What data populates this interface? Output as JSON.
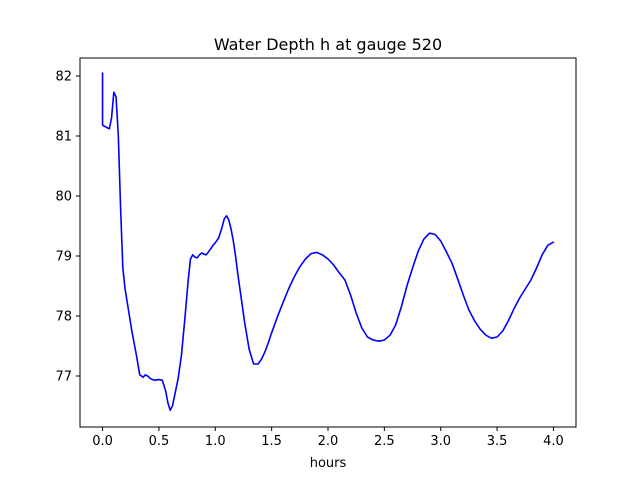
{
  "chart_data": {
    "type": "line",
    "title": "Water Depth h at gauge 520",
    "xlabel": "hours",
    "ylabel": "",
    "xlim": [
      -0.2,
      4.2
    ],
    "ylim": [
      76.15,
      82.3
    ],
    "xticks": [
      "0.0",
      "0.5",
      "1.0",
      "1.5",
      "2.0",
      "2.5",
      "3.0",
      "3.5",
      "4.0"
    ],
    "yticks": [
      "77",
      "78",
      "79",
      "80",
      "81",
      "82"
    ],
    "grid": false,
    "line_color": "#0000ff",
    "series": [
      {
        "x": [
          0.0,
          0.0,
          0.0,
          0.03,
          0.06,
          0.08,
          0.1,
          0.12,
          0.14,
          0.16,
          0.18,
          0.2,
          0.23,
          0.26,
          0.3,
          0.33,
          0.36,
          0.38,
          0.4,
          0.43,
          0.46,
          0.5,
          0.53,
          0.56,
          0.58,
          0.6,
          0.62,
          0.64,
          0.67,
          0.7,
          0.73,
          0.76,
          0.78,
          0.8,
          0.82,
          0.84,
          0.86,
          0.88,
          0.9,
          0.92,
          0.94,
          0.96,
          0.98,
          1.0,
          1.03,
          1.06,
          1.08,
          1.1,
          1.12,
          1.14,
          1.16,
          1.18,
          1.2,
          1.23,
          1.26,
          1.3,
          1.34,
          1.38,
          1.41,
          1.44,
          1.47,
          1.5,
          1.55,
          1.6,
          1.65,
          1.7,
          1.75,
          1.8,
          1.85,
          1.9,
          1.95,
          2.0,
          2.05,
          2.1,
          2.15,
          2.2,
          2.25,
          2.3,
          2.35,
          2.4,
          2.45,
          2.5,
          2.55,
          2.6,
          2.65,
          2.7,
          2.75,
          2.8,
          2.85,
          2.9,
          2.95,
          3.0,
          3.05,
          3.1,
          3.15,
          3.2,
          3.25,
          3.3,
          3.35,
          3.4,
          3.45,
          3.5,
          3.55,
          3.6,
          3.65,
          3.7,
          3.75,
          3.8,
          3.85,
          3.9,
          3.95,
          4.0
        ],
        "y": [
          82.05,
          81.2,
          81.18,
          81.15,
          81.12,
          81.3,
          81.73,
          81.65,
          81.0,
          79.8,
          78.8,
          78.45,
          78.1,
          77.75,
          77.35,
          77.02,
          76.98,
          77.02,
          77.0,
          76.95,
          76.93,
          76.94,
          76.93,
          76.75,
          76.55,
          76.43,
          76.5,
          76.68,
          76.95,
          77.35,
          77.95,
          78.6,
          78.95,
          79.02,
          78.98,
          78.97,
          79.02,
          79.05,
          79.03,
          79.02,
          79.07,
          79.12,
          79.18,
          79.22,
          79.3,
          79.48,
          79.62,
          79.67,
          79.6,
          79.45,
          79.25,
          79.0,
          78.7,
          78.3,
          77.9,
          77.45,
          77.2,
          77.2,
          77.28,
          77.4,
          77.55,
          77.72,
          77.98,
          78.22,
          78.45,
          78.65,
          78.82,
          78.95,
          79.04,
          79.06,
          79.02,
          78.95,
          78.85,
          78.72,
          78.6,
          78.35,
          78.05,
          77.8,
          77.65,
          77.6,
          77.58,
          77.6,
          77.68,
          77.85,
          78.15,
          78.5,
          78.8,
          79.08,
          79.28,
          79.38,
          79.36,
          79.25,
          79.07,
          78.88,
          78.62,
          78.35,
          78.1,
          77.92,
          77.78,
          77.68,
          77.63,
          77.65,
          77.75,
          77.92,
          78.12,
          78.3,
          78.45,
          78.6,
          78.8,
          79.02,
          79.18,
          79.23
        ]
      }
    ]
  }
}
